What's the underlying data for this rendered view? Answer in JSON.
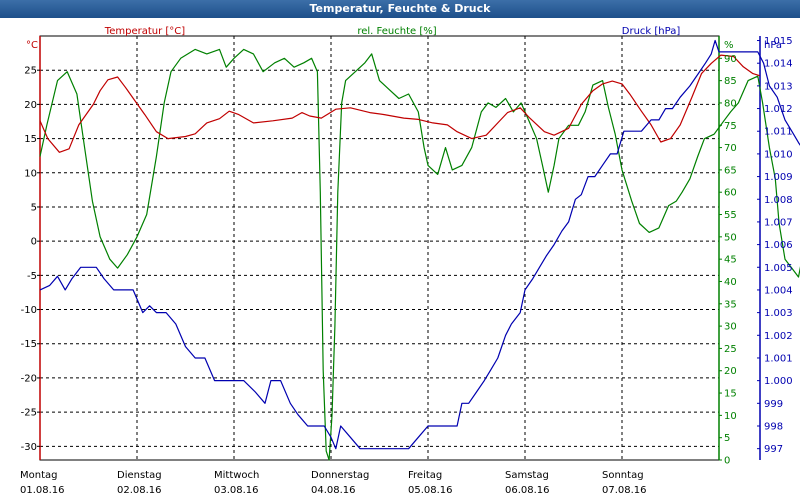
{
  "window_title": "Temperatur, Feuchte & Druck",
  "chart_data": {
    "type": "line",
    "title": "Temperatur, Feuchte & Druck",
    "legend": [
      {
        "label": "Temperatur [°C]",
        "color": "#c00000"
      },
      {
        "label": "rel. Feuchte [%]",
        "color": "#008000"
      },
      {
        "label": "Druck [hPa]",
        "color": "#0000b0"
      }
    ],
    "axes": {
      "temperature": {
        "unit_label": "°C",
        "min": -32,
        "max": 30,
        "ticks": [
          "25",
          "20",
          "15",
          "10",
          "5",
          "0",
          "-5",
          "-10",
          "-15",
          "-20",
          "-25",
          "-30"
        ]
      },
      "humidity": {
        "unit_label": "%",
        "min": 0,
        "max": 95,
        "ticks": [
          "90",
          "85",
          "80",
          "75",
          "70",
          "65",
          "60",
          "55",
          "50",
          "45",
          "40",
          "35",
          "30",
          "25",
          "20",
          "15",
          "10",
          "5",
          "0"
        ]
      },
      "pressure": {
        "unit_label": "hPa",
        "min": 996.5,
        "max": 1015.2,
        "ticks": [
          "1.015",
          "1.014",
          "1.013",
          "1.012",
          "1.011",
          "1.010",
          "1.009",
          "1.008",
          "1.007",
          "1.006",
          "1.005",
          "1.004",
          "1.003",
          "1.002",
          "1.001",
          "1.000",
          "999",
          "998",
          "997"
        ]
      }
    },
    "x_range_days": [
      0,
      7
    ],
    "day_labels": [
      {
        "day": "Montag",
        "date": "01.08.16"
      },
      {
        "day": "Dienstag",
        "date": "02.08.16"
      },
      {
        "day": "Mittwoch",
        "date": "03.08.16"
      },
      {
        "day": "Donnerstag",
        "date": "04.08.16"
      },
      {
        "day": "Freitag",
        "date": "05.08.16"
      },
      {
        "day": "Samstag",
        "date": "06.08.16"
      },
      {
        "day": "Sonntag",
        "date": "07.08.16"
      }
    ],
    "grid": true,
    "series": [
      {
        "name": "Temperatur [°C]",
        "axis": "temperature",
        "color": "#c00000",
        "points": [
          [
            0,
            17.6
          ],
          [
            0.08,
            15
          ],
          [
            0.2,
            13
          ],
          [
            0.3,
            13.5
          ],
          [
            0.4,
            17
          ],
          [
            0.55,
            20
          ],
          [
            0.62,
            22
          ],
          [
            0.7,
            23.6
          ],
          [
            0.8,
            24
          ],
          [
            0.88,
            22.5
          ],
          [
            0.98,
            20.5
          ],
          [
            1.08,
            18.5
          ],
          [
            1.2,
            16
          ],
          [
            1.32,
            15
          ],
          [
            1.5,
            15.3
          ],
          [
            1.6,
            15.7
          ],
          [
            1.72,
            17.3
          ],
          [
            1.85,
            17.9
          ],
          [
            1.95,
            19
          ],
          [
            2.05,
            18.5
          ],
          [
            2.2,
            17.3
          ],
          [
            2.4,
            17.6
          ],
          [
            2.6,
            18
          ],
          [
            2.7,
            18.8
          ],
          [
            2.78,
            18.3
          ],
          [
            2.9,
            18
          ],
          [
            3.05,
            19.3
          ],
          [
            3.2,
            19.5
          ],
          [
            3.4,
            18.8
          ],
          [
            3.55,
            18.5
          ],
          [
            3.75,
            18
          ],
          [
            3.9,
            17.8
          ],
          [
            4.05,
            17.3
          ],
          [
            4.2,
            17
          ],
          [
            4.3,
            16
          ],
          [
            4.45,
            15
          ],
          [
            4.6,
            15.5
          ],
          [
            4.72,
            17.3
          ],
          [
            4.82,
            18.8
          ],
          [
            4.95,
            19.5
          ],
          [
            5.05,
            18
          ],
          [
            5.2,
            16
          ],
          [
            5.3,
            15.5
          ],
          [
            5.45,
            16.5
          ],
          [
            5.58,
            20
          ],
          [
            5.7,
            22
          ],
          [
            5.8,
            23
          ],
          [
            5.9,
            23.4
          ],
          [
            6.0,
            23
          ],
          [
            6.08,
            21.5
          ],
          [
            6.2,
            19
          ],
          [
            6.3,
            17
          ],
          [
            6.4,
            14.5
          ],
          [
            6.5,
            15
          ],
          [
            6.6,
            17
          ],
          [
            6.72,
            21
          ],
          [
            6.82,
            24.5
          ],
          [
            6.92,
            26
          ],
          [
            7.02,
            27.2
          ],
          [
            7.15,
            27
          ],
          [
            7.25,
            25.5
          ],
          [
            7.35,
            24.5
          ],
          [
            7.42,
            24.2
          ]
        ]
      },
      {
        "name": "rel. Feuchte [%]",
        "axis": "humidity",
        "color": "#008000",
        "points": [
          [
            0,
            68
          ],
          [
            0.07,
            75
          ],
          [
            0.18,
            85
          ],
          [
            0.28,
            87
          ],
          [
            0.38,
            82
          ],
          [
            0.46,
            70
          ],
          [
            0.54,
            58
          ],
          [
            0.62,
            50
          ],
          [
            0.72,
            45
          ],
          [
            0.8,
            43
          ],
          [
            0.9,
            46
          ],
          [
            1.0,
            50
          ],
          [
            1.1,
            55
          ],
          [
            1.2,
            68
          ],
          [
            1.28,
            80
          ],
          [
            1.35,
            87
          ],
          [
            1.45,
            90
          ],
          [
            1.6,
            92
          ],
          [
            1.72,
            91
          ],
          [
            1.85,
            92
          ],
          [
            1.92,
            88
          ],
          [
            2.0,
            90
          ],
          [
            2.1,
            92
          ],
          [
            2.2,
            91
          ],
          [
            2.3,
            87
          ],
          [
            2.42,
            89
          ],
          [
            2.52,
            90
          ],
          [
            2.62,
            88
          ],
          [
            2.72,
            89
          ],
          [
            2.8,
            90
          ],
          [
            2.86,
            87
          ],
          [
            2.89,
            60
          ],
          [
            2.92,
            20
          ],
          [
            2.95,
            2
          ],
          [
            2.98,
            0
          ],
          [
            3.01,
            10
          ],
          [
            3.04,
            30
          ],
          [
            3.07,
            60
          ],
          [
            3.11,
            80
          ],
          [
            3.15,
            85
          ],
          [
            3.25,
            87
          ],
          [
            3.35,
            89
          ],
          [
            3.42,
            91
          ],
          [
            3.5,
            85
          ],
          [
            3.6,
            83
          ],
          [
            3.7,
            81
          ],
          [
            3.8,
            82
          ],
          [
            3.9,
            78
          ],
          [
            3.96,
            70
          ],
          [
            4.0,
            66
          ],
          [
            4.1,
            64
          ],
          [
            4.18,
            70
          ],
          [
            4.25,
            65
          ],
          [
            4.35,
            66
          ],
          [
            4.45,
            70
          ],
          [
            4.55,
            78
          ],
          [
            4.62,
            80
          ],
          [
            4.7,
            79
          ],
          [
            4.8,
            81
          ],
          [
            4.88,
            78
          ],
          [
            4.96,
            80
          ],
          [
            5.04,
            76
          ],
          [
            5.12,
            72
          ],
          [
            5.18,
            66
          ],
          [
            5.24,
            60
          ],
          [
            5.3,
            66
          ],
          [
            5.35,
            72
          ],
          [
            5.45,
            75
          ],
          [
            5.55,
            75
          ],
          [
            5.62,
            78
          ],
          [
            5.7,
            84
          ],
          [
            5.8,
            85
          ],
          [
            5.86,
            79
          ],
          [
            5.93,
            73
          ],
          [
            6.0,
            65
          ],
          [
            6.1,
            58
          ],
          [
            6.18,
            53
          ],
          [
            6.28,
            51
          ],
          [
            6.38,
            52
          ],
          [
            6.48,
            57
          ],
          [
            6.56,
            58
          ],
          [
            6.62,
            60
          ],
          [
            6.7,
            63
          ],
          [
            6.78,
            68
          ],
          [
            6.85,
            72
          ],
          [
            6.95,
            73
          ],
          [
            7.05,
            76
          ],
          [
            7.12,
            78
          ],
          [
            7.2,
            80
          ],
          [
            7.3,
            85
          ],
          [
            7.4,
            86
          ],
          [
            7.45,
            80
          ],
          [
            7.52,
            70
          ],
          [
            7.58,
            63
          ],
          [
            7.62,
            53
          ],
          [
            7.68,
            45
          ],
          [
            7.75,
            43
          ],
          [
            7.82,
            41
          ],
          [
            7.9,
            50
          ],
          [
            7.98,
            55
          ],
          [
            8.05,
            60
          ],
          [
            8.12,
            63
          ],
          [
            8.2,
            65
          ],
          [
            8.26,
            65
          ]
        ]
      },
      {
        "name": "Druck [hPa]",
        "axis": "pressure",
        "color": "#0000b0",
        "points": [
          [
            0,
            1004
          ],
          [
            0.1,
            1004.2
          ],
          [
            0.18,
            1004.6
          ],
          [
            0.26,
            1004
          ],
          [
            0.33,
            1004.5
          ],
          [
            0.42,
            1005
          ],
          [
            0.5,
            1005
          ],
          [
            0.58,
            1005
          ],
          [
            0.66,
            1004.5
          ],
          [
            0.76,
            1004
          ],
          [
            0.86,
            1004
          ],
          [
            0.96,
            1004
          ],
          [
            1.06,
            1003
          ],
          [
            1.13,
            1003.3
          ],
          [
            1.2,
            1003
          ],
          [
            1.3,
            1003
          ],
          [
            1.4,
            1002.5
          ],
          [
            1.5,
            1001.5
          ],
          [
            1.6,
            1001
          ],
          [
            1.7,
            1001
          ],
          [
            1.8,
            1000
          ],
          [
            1.9,
            1000
          ],
          [
            2.0,
            1000
          ],
          [
            2.1,
            1000
          ],
          [
            2.22,
            999.5
          ],
          [
            2.32,
            999
          ],
          [
            2.38,
            1000
          ],
          [
            2.48,
            1000
          ],
          [
            2.58,
            999
          ],
          [
            2.66,
            998.5
          ],
          [
            2.76,
            998
          ],
          [
            2.85,
            998
          ],
          [
            2.93,
            998
          ],
          [
            3.0,
            997.5
          ],
          [
            3.05,
            997
          ],
          [
            3.1,
            998
          ],
          [
            3.2,
            997.5
          ],
          [
            3.3,
            997
          ],
          [
            3.4,
            997
          ],
          [
            3.5,
            997
          ],
          [
            3.6,
            997
          ],
          [
            3.7,
            997
          ],
          [
            3.8,
            997
          ],
          [
            3.9,
            997.5
          ],
          [
            4.0,
            998
          ],
          [
            4.1,
            998
          ],
          [
            4.2,
            998
          ],
          [
            4.3,
            998
          ],
          [
            4.35,
            999
          ],
          [
            4.42,
            999
          ],
          [
            4.5,
            999.5
          ],
          [
            4.58,
            1000
          ],
          [
            4.65,
            1000.5
          ],
          [
            4.72,
            1001
          ],
          [
            4.8,
            1002
          ],
          [
            4.86,
            1002.5
          ],
          [
            4.95,
            1003
          ],
          [
            5.0,
            1004
          ],
          [
            5.08,
            1004.5
          ],
          [
            5.15,
            1005
          ],
          [
            5.22,
            1005.5
          ],
          [
            5.3,
            1006
          ],
          [
            5.38,
            1006.6
          ],
          [
            5.45,
            1007
          ],
          [
            5.52,
            1008
          ],
          [
            5.58,
            1008.2
          ],
          [
            5.65,
            1009
          ],
          [
            5.72,
            1009
          ],
          [
            5.8,
            1009.5
          ],
          [
            5.88,
            1010
          ],
          [
            5.95,
            1010
          ],
          [
            6.02,
            1011
          ],
          [
            6.1,
            1011
          ],
          [
            6.2,
            1011
          ],
          [
            6.3,
            1011.5
          ],
          [
            6.38,
            1011.5
          ],
          [
            6.45,
            1012
          ],
          [
            6.52,
            1012
          ],
          [
            6.6,
            1012.5
          ],
          [
            6.7,
            1013
          ],
          [
            6.78,
            1013.5
          ],
          [
            6.86,
            1014
          ],
          [
            6.92,
            1014.4
          ],
          [
            6.96,
            1015
          ],
          [
            7.0,
            1014.5
          ],
          [
            7.1,
            1014.5
          ],
          [
            7.2,
            1014.5
          ],
          [
            7.32,
            1014.5
          ],
          [
            7.4,
            1014.5
          ],
          [
            7.46,
            1014
          ],
          [
            7.52,
            1013
          ],
          [
            7.6,
            1012.5
          ],
          [
            7.68,
            1011.5
          ],
          [
            7.75,
            1011
          ],
          [
            7.82,
            1010.5
          ],
          [
            7.9,
            1010
          ],
          [
            8.0,
            1009.2
          ],
          [
            8.06,
            1009
          ],
          [
            8.12,
            1008
          ],
          [
            8.2,
            1008
          ],
          [
            8.26,
            1007.5
          ]
        ]
      }
    ]
  }
}
